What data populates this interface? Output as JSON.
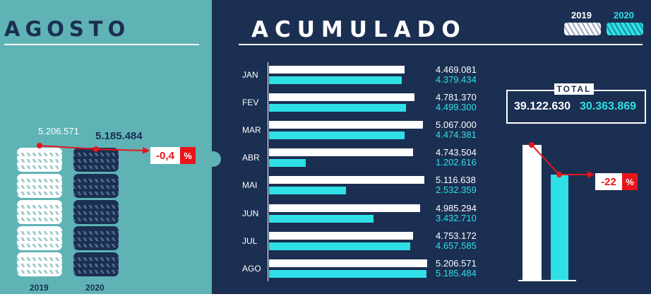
{
  "left": {
    "title": "AGOSTO",
    "value_2019": "5.206.571",
    "value_2020": "5.185.484",
    "change_value": "-0,4",
    "change_unit": "%",
    "year_2019": "2019",
    "year_2020": "2020"
  },
  "right": {
    "title": "ACUMULADO",
    "legend": [
      {
        "label": "2019",
        "color": "#ffffff"
      },
      {
        "label": "2020",
        "color": "#2ee0e6"
      }
    ],
    "total_label": "TOTAL",
    "total_2019": "39.122.630",
    "total_2020": "30.363.869",
    "change_value": "-22",
    "change_unit": "%"
  },
  "chart_data": {
    "type": "bar",
    "orientation": "horizontal",
    "categories": [
      "JAN",
      "FEV",
      "MAR",
      "ABR",
      "MAI",
      "JUN",
      "JUL",
      "AGO"
    ],
    "series": [
      {
        "name": "2019",
        "color": "#ffffff",
        "values": [
          4469081,
          4781370,
          5067000,
          4743504,
          5116638,
          4985294,
          4753172,
          5206571
        ],
        "labels": [
          "4.469.081",
          "4.781.370",
          "5.067.000",
          "4.743.504",
          "5.116.638",
          "4.985.294",
          "4.753.172",
          "5.206.571"
        ]
      },
      {
        "name": "2020",
        "color": "#2ee0e6",
        "values": [
          4379434,
          4499300,
          4474381,
          1202616,
          2532359,
          3432710,
          4657585,
          5185484
        ],
        "labels": [
          "4.379.434",
          "4.499.300",
          "4.474.381",
          "1.202.616",
          "2.532.359",
          "3.432.710",
          "4.657.585",
          "5.185.484"
        ]
      }
    ],
    "xlim": [
      0,
      5300000
    ]
  }
}
